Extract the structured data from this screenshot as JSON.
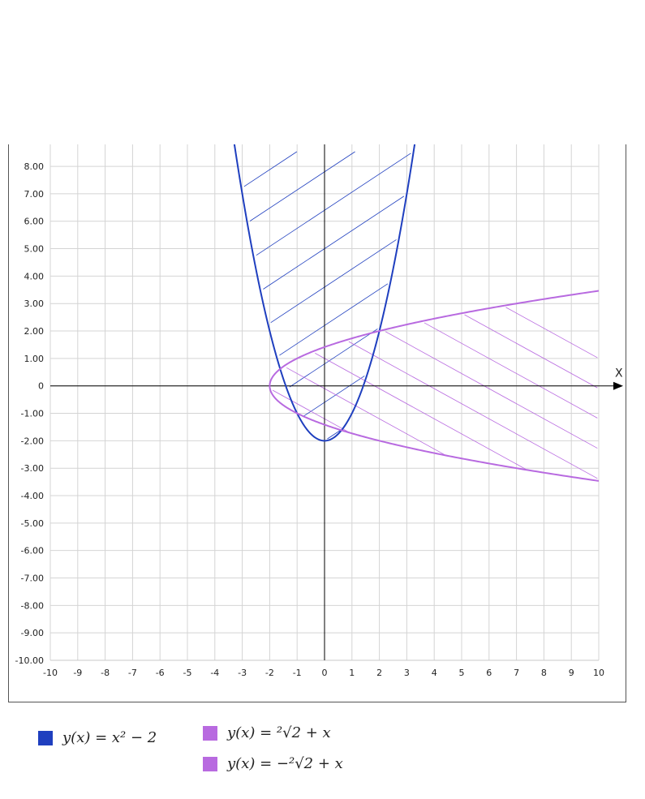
{
  "chart_data": {
    "type": "line",
    "axis_label_x": "X",
    "xlim": [
      -10,
      10
    ],
    "ylim": [
      -10,
      8.8
    ],
    "grid": true,
    "x_ticks": [
      "-10",
      "-9",
      "-8",
      "-7",
      "-6",
      "-5",
      "-4",
      "-3",
      "-2",
      "-1",
      "0",
      "1",
      "2",
      "3",
      "4",
      "5",
      "6",
      "7",
      "8",
      "9",
      "10"
    ],
    "y_ticks": [
      "8.00",
      "7.00",
      "6.00",
      "5.00",
      "4.00",
      "3.00",
      "2.00",
      "1.00",
      "0",
      "-1.00",
      "-2.00",
      "-3.00",
      "-4.00",
      "-5.00",
      "-6.00",
      "-7.00",
      "-8.00",
      "-9.00",
      "-10.00"
    ],
    "series": [
      {
        "name": "y(x) = x^2 - 2",
        "color": "#1f3fbf",
        "formula": "x^2-2",
        "shading": "inside"
      },
      {
        "name": "y(x) = sqrt(2 + x)",
        "color": "#b86ae0",
        "formula": "sqrt(2+x)",
        "shading": "inside"
      },
      {
        "name": "y(x) = -sqrt(2 + x)",
        "color": "#b86ae0",
        "formula": "-sqrt(2+x)",
        "shading": "inside"
      }
    ]
  },
  "legend": [
    {
      "label": "y(x) = x² − 2",
      "color": "#1f3fbf"
    },
    {
      "label": "y(x) = ²√2 + x",
      "color": "#b86ae0"
    },
    {
      "label": "y(x) = −²√2 + x",
      "color": "#b86ae0"
    }
  ]
}
